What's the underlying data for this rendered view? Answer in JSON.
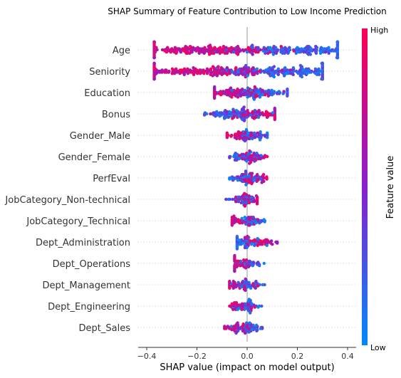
{
  "chart_data": {
    "type": "scatter",
    "subtype": "shap-beeswarm",
    "title": "SHAP Summary of Feature Contribution to Low Income Prediction",
    "xlabel": "SHAP value (impact on model output)",
    "xlim": [
      -0.42,
      0.42
    ],
    "x_ticks": [
      -0.4,
      -0.2,
      0.0,
      0.2,
      0.4
    ],
    "x_tick_labels": [
      "−0.4",
      "−0.2",
      "0.0",
      "0.2",
      "0.4"
    ],
    "colorbar": {
      "label": "Feature value",
      "high_label": "High",
      "low_label": "Low",
      "high_color": "#ff0052",
      "mid_color": "#8a1ecf",
      "low_color": "#008bfb"
    },
    "features": [
      {
        "name": "Age",
        "min": -0.37,
        "max": 0.36,
        "mean_high_value_shap": -0.18,
        "mean_low_value_shap": 0.24
      },
      {
        "name": "Seniority",
        "min": -0.37,
        "max": 0.3,
        "mean_high_value_shap": -0.17,
        "mean_low_value_shap": 0.18
      },
      {
        "name": "Education",
        "min": -0.13,
        "max": 0.16,
        "mean_high_value_shap": -0.04,
        "mean_low_value_shap": 0.05
      },
      {
        "name": "Bonus",
        "min": -0.17,
        "max": 0.11,
        "mean_high_value_shap": 0.03,
        "mean_low_value_shap": -0.06
      },
      {
        "name": "Gender_Male",
        "min": -0.08,
        "max": 0.08,
        "mean_high_value_shap": -0.02,
        "mean_low_value_shap": 0.03
      },
      {
        "name": "Gender_Female",
        "min": -0.07,
        "max": 0.08,
        "mean_high_value_shap": 0.03,
        "mean_low_value_shap": -0.02
      },
      {
        "name": "PerfEval",
        "min": -0.07,
        "max": 0.09,
        "mean_high_value_shap": 0.02,
        "mean_low_value_shap": -0.01
      },
      {
        "name": "JobCategory_Non-technical",
        "min": -0.09,
        "max": 0.04,
        "mean_high_value_shap": 0.005,
        "mean_low_value_shap": -0.02
      },
      {
        "name": "JobCategory_Technical",
        "min": -0.06,
        "max": 0.07,
        "mean_high_value_shap": -0.02,
        "mean_low_value_shap": 0.02
      },
      {
        "name": "Dept_Administration",
        "min": -0.04,
        "max": 0.12,
        "mean_high_value_shap": 0.05,
        "mean_low_value_shap": -0.01
      },
      {
        "name": "Dept_Operations",
        "min": -0.05,
        "max": 0.07,
        "mean_high_value_shap": -0.03,
        "mean_low_value_shap": 0.01
      },
      {
        "name": "Dept_Management",
        "min": -0.07,
        "max": 0.07,
        "mean_high_value_shap": -0.03,
        "mean_low_value_shap": 0.005
      },
      {
        "name": "Dept_Engineering",
        "min": -0.07,
        "max": 0.06,
        "mean_high_value_shap": -0.03,
        "mean_low_value_shap": 0.005
      },
      {
        "name": "Dept_Sales",
        "min": -0.09,
        "max": 0.06,
        "mean_high_value_shap": -0.04,
        "mean_low_value_shap": 0.005
      }
    ]
  }
}
